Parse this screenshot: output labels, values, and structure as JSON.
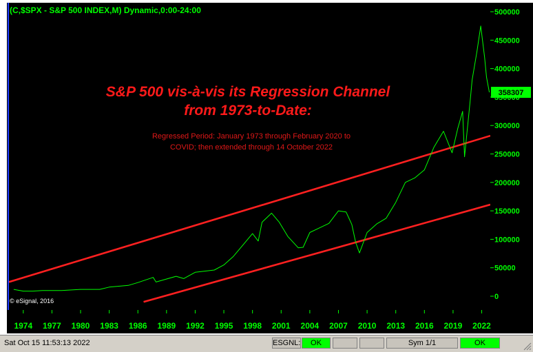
{
  "window": {
    "title": "(C,$SPX - S&P 500 INDEX,M) Dynamic,0:00-24:00",
    "headline_line1": "S&P 500 vis-à-vis its Regression Channel",
    "headline_line2": "from 1973-to-Date:",
    "note_line1": "Regressed Period:  January 1973 through February 2020 to",
    "note_line2": "COVID; then extended through 14 October 2022",
    "copyright": "© eSignal, 2016"
  },
  "colors": {
    "price_line": "#00ff00",
    "channel": "#ff2020",
    "axis_text": "#00ff00",
    "last_price_box": "#00ff00"
  },
  "status": {
    "datetime": "Sat Oct 15 11:53:13 2022",
    "feed_label": "ESGNL:",
    "feed_status": "OK",
    "sym_label": "Sym 1/1",
    "final_status": "OK"
  },
  "chart_data": {
    "type": "line",
    "title": "(C,$SPX - S&P 500 INDEX,M) Dynamic,0:00-24:00",
    "x_ticks": [
      "1974",
      "1977",
      "1980",
      "1983",
      "1986",
      "1989",
      "1992",
      "1995",
      "1998",
      "2001",
      "2004",
      "2007",
      "2010",
      "2013",
      "2016",
      "2019",
      "2022"
    ],
    "y_ticks": [
      "500000",
      "450000",
      "400000",
      "350000",
      "300000",
      "250000",
      "200000",
      "150000",
      "100000",
      "50000",
      "0"
    ],
    "ylim": [
      0,
      500000
    ],
    "xlim": [
      1972.5,
      2022.9
    ],
    "last_value_label": "358307",
    "series": [
      {
        "x": [
          1973,
          1974,
          1975,
          1976,
          1978,
          1980,
          1982,
          1983,
          1985,
          1986,
          1987.6,
          1987.9,
          1990,
          1990.8,
          1992,
          1994,
          1995,
          1996,
          1997,
          1998,
          1998.6,
          1999,
          2000,
          2000.8,
          2001.7,
          2002.8,
          2003.3,
          2004,
          2005,
          2006,
          2007,
          2007.8,
          2008.4,
          2008.8,
          2009.2,
          2010,
          2011,
          2012,
          2013,
          2014,
          2015,
          2016,
          2017,
          2018,
          2018.9,
          2019.5,
          2020,
          2020.2,
          2020.8,
          2021,
          2021.5,
          2021.9,
          2022.3,
          2022.5,
          2022.8
        ],
        "y": [
          12000,
          9000,
          9000,
          10000,
          10000,
          12000,
          12000,
          16000,
          19000,
          24000,
          33000,
          25000,
          35000,
          31000,
          42000,
          46000,
          55000,
          70000,
          90000,
          110000,
          97000,
          130000,
          146000,
          130000,
          105000,
          85000,
          86000,
          112000,
          120000,
          128000,
          150000,
          148000,
          126000,
          95000,
          76000,
          112000,
          127000,
          137000,
          165000,
          200000,
          208000,
          222000,
          262000,
          290000,
          252000,
          295000,
          325000,
          245000,
          345000,
          380000,
          430000,
          475000,
          420000,
          385000,
          358307
        ]
      },
      {
        "x": [
          1972.5,
          2022.9
        ],
        "y": [
          25000,
          282000
        ]
      },
      {
        "x": [
          1986.6,
          2022.9
        ],
        "y": [
          -10000,
          161000
        ]
      }
    ]
  }
}
